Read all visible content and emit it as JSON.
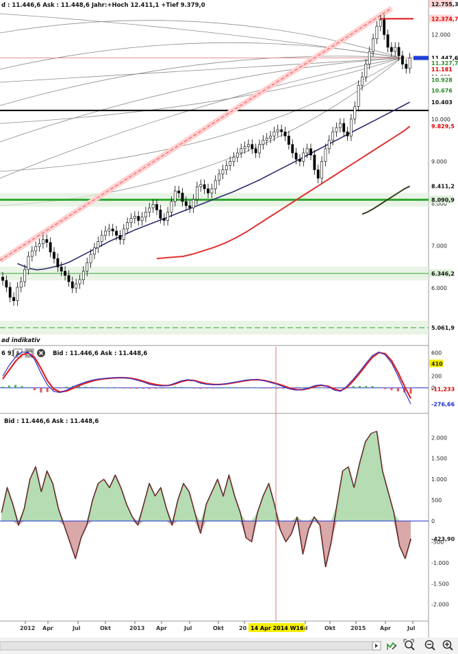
{
  "header": {
    "main_quote": "d : 11.446,6 Ask : 11.448,6 Jahr:+Hoch 12.411,1 +Tief 9.379,0",
    "indicator_label": "ad indikativ",
    "macd_settings": "6 9]",
    "macd_quote": "Bid : 11.446,6 Ask : 11.448,6",
    "osc_quote": "Bid : 11.446,6 Ask : 11.448,6"
  },
  "icons": {
    "wrench": "wrench-icon",
    "window": "window-icon",
    "close": "close-icon",
    "scroll_right": "scroll-right-arrow-icon",
    "edit": "edit-chart-icon",
    "zoom_fit": "zoom-fit-icon",
    "zoom_out": "zoom-out-icon",
    "zoom_in": "zoom-in-icon"
  },
  "colors": {
    "price_body_up": "#ffffff",
    "price_body_down": "#000000",
    "ma_short": "#2c2c6e",
    "ma_mid": "#e03030",
    "ma_long": "#3b3b1e",
    "support_green": "#2fa82f",
    "resistance_red": "#e01010",
    "macd_blue": "#3333cc",
    "macd_red": "#e02020",
    "hist_green": "#44bb44",
    "hist_red": "#dd5555",
    "osc_pos_fill": "#b5dcb2",
    "osc_neg_fill": "#d9a9a9",
    "tag_yellow": "#f6f000",
    "tag_blue": "#1f3fd6"
  },
  "crosshair_label": "14 Apr 2014 W16",
  "x_axis": {
    "ticks": [
      "2012",
      "Apr",
      "Jul",
      "Okt",
      "2013",
      "Apr",
      "Jul",
      "Okt",
      "20",
      "Jul",
      "Okt",
      "2015",
      "Apr",
      "Jul"
    ]
  },
  "chart_data": [
    {
      "type": "candlestick",
      "title": "",
      "ylim": [
        5061.9,
        12755.3
      ],
      "y_ticks": [
        "12.000",
        "11.000",
        "10.000",
        "9.000",
        "8.000",
        "7.000",
        "6.000"
      ],
      "right_labels": {
        "top": "12.755,3",
        "resistance": "12.374,7",
        "last_price": "11.447,6",
        "l1": "11.327,7",
        "l2": "11.181",
        "l3": "10.928",
        "l4": "10.676",
        "l5": "10.403",
        "l6": "9.829,5",
        "l7": "8.411,2",
        "l8": "8.090,9",
        "l9": "6.346,2",
        "l10": "5.061,9"
      },
      "horizontal_levels": {
        "black_level": 10205,
        "green_thick": 8091,
        "green_thin": 6346,
        "green_dashed": 5062,
        "red_top": 12375,
        "price_line": 11448
      },
      "weekly_close": [
        6180,
        6020,
        5780,
        5700,
        6020,
        6150,
        6440,
        6750,
        6880,
        6980,
        7050,
        7150,
        7080,
        6850,
        6700,
        6500,
        6400,
        6300,
        6150,
        6000,
        6100,
        6200,
        6400,
        6600,
        6800,
        6950,
        7100,
        7250,
        7350,
        7400,
        7350,
        7250,
        7150,
        7400,
        7550,
        7650,
        7700,
        7600,
        7680,
        7800,
        7900,
        7980,
        7850,
        7650,
        7600,
        7800,
        8050,
        8300,
        8250,
        8050,
        7950,
        7900,
        8100,
        8400,
        8450,
        8350,
        8250,
        8350,
        8550,
        8700,
        8800,
        8900,
        9000,
        9100,
        9200,
        9300,
        9350,
        9400,
        9300,
        9200,
        9400,
        9500,
        9550,
        9600,
        9700,
        9750,
        9700,
        9600,
        9400,
        9200,
        9050,
        9000,
        9200,
        9300,
        9150,
        8800,
        8600,
        9000,
        9300,
        9500,
        9700,
        9800,
        9900,
        9700,
        9600,
        10000,
        10300,
        10800,
        11000,
        11300,
        11600,
        11900,
        12200,
        12350,
        12000,
        11700,
        11600,
        11700,
        11500,
        11300,
        11200,
        11448
      ],
      "ma_short": [
        6580,
        6520,
        6460,
        6430,
        6450,
        6480,
        6520,
        6560,
        6620,
        6700,
        6780,
        6860,
        6940,
        7020,
        7100,
        7170,
        7240,
        7310,
        7380,
        7440,
        7500,
        7560,
        7620,
        7680,
        7740,
        7800,
        7860,
        7920,
        7980,
        8040,
        8100,
        8160,
        8220,
        8280,
        8350,
        8420,
        8490,
        8560,
        8640,
        8720,
        8800,
        8880,
        8960,
        9040,
        9120,
        9200,
        9280,
        9360,
        9440,
        9520,
        9600,
        9680,
        9760,
        9840,
        9920,
        10000,
        10080,
        10160,
        10240,
        10320,
        10403
      ],
      "ma_mid": [
        6700,
        6710,
        6720,
        6730,
        6740,
        6750,
        6780,
        6810,
        6850,
        6890,
        6930,
        6970,
        7020,
        7070,
        7130,
        7190,
        7260,
        7330,
        7410,
        7490,
        7570,
        7650,
        7730,
        7810,
        7890,
        7970,
        8050,
        8130,
        8210,
        8290,
        8370,
        8450,
        8530,
        8610,
        8690,
        8770,
        8850,
        8930,
        9010,
        9090,
        9170,
        9250,
        9330,
        9410,
        9490,
        9570,
        9650,
        9730,
        9830
      ],
      "ma_long": [
        7750,
        7800,
        7870,
        7950,
        8030,
        8110,
        8190,
        8270,
        8350,
        8411
      ]
    },
    {
      "type": "line",
      "title": "",
      "ylim": [
        -400,
        650
      ],
      "y_ticks": [
        "600",
        "400",
        "200",
        "0"
      ],
      "right_labels": {
        "signal": "410",
        "hist": "-11,233",
        "macd": "-276,66"
      },
      "macd": [
        200,
        380,
        520,
        610,
        600,
        480,
        250,
        50,
        -60,
        -80,
        -40,
        20,
        60,
        100,
        130,
        150,
        160,
        170,
        175,
        170,
        160,
        130,
        100,
        60,
        40,
        30,
        40,
        80,
        120,
        140,
        120,
        80,
        60,
        50,
        55,
        70,
        90,
        110,
        130,
        140,
        140,
        120,
        90,
        60,
        20,
        -20,
        -40,
        -30,
        0,
        40,
        50,
        20,
        -40,
        -60,
        30,
        150,
        280,
        420,
        550,
        610,
        560,
        420,
        200,
        -50,
        -276
      ],
      "signal": [
        150,
        300,
        450,
        560,
        590,
        520,
        330,
        120,
        -20,
        -70,
        -55,
        -10,
        40,
        80,
        115,
        140,
        155,
        165,
        172,
        172,
        165,
        145,
        115,
        80,
        55,
        40,
        40,
        65,
        105,
        130,
        125,
        95,
        70,
        58,
        56,
        65,
        82,
        100,
        120,
        135,
        138,
        125,
        100,
        70,
        35,
        -5,
        -30,
        -32,
        -10,
        25,
        42,
        28,
        -20,
        -50,
        10,
        120,
        250,
        390,
        520,
        600,
        580,
        460,
        260,
        30,
        -180
      ],
      "hist": [
        20,
        40,
        50,
        30,
        10,
        -40,
        -80,
        -70,
        -40,
        -10,
        20,
        30,
        25,
        20,
        15,
        10,
        5,
        5,
        3,
        -2,
        -5,
        -15,
        -15,
        -20,
        -15,
        -10,
        0,
        15,
        15,
        10,
        -5,
        -15,
        -10,
        -8,
        0,
        5,
        8,
        10,
        10,
        5,
        2,
        -5,
        -10,
        -10,
        -15,
        -15,
        -10,
        2,
        10,
        15,
        8,
        -8,
        -20,
        -10,
        20,
        30,
        30,
        30,
        30,
        10,
        -20,
        -40,
        -60,
        -80,
        -96
      ]
    },
    {
      "type": "area",
      "title": "",
      "ylim": [
        -2300,
        2300
      ],
      "y_ticks": [
        "2.000",
        "1.500",
        "1.000",
        "500",
        "0",
        "-500",
        "-1.000",
        "-1.500",
        "-2.000"
      ],
      "right_labels": {
        "last": "-423,90"
      },
      "values": [
        200,
        800,
        400,
        -100,
        300,
        1000,
        1300,
        700,
        1200,
        900,
        300,
        -100,
        -500,
        -900,
        -400,
        -100,
        500,
        900,
        1000,
        800,
        1100,
        800,
        400,
        100,
        -100,
        400,
        900,
        600,
        800,
        300,
        -100,
        500,
        900,
        700,
        200,
        -300,
        400,
        700,
        1000,
        600,
        1100,
        600,
        200,
        -400,
        -500,
        200,
        600,
        900,
        400,
        -200,
        -500,
        -300,
        100,
        -800,
        -200,
        100,
        -100,
        -1100,
        -500,
        400,
        1200,
        1300,
        800,
        1400,
        1900,
        2100,
        2150,
        1200,
        700,
        200,
        -600,
        -900,
        -424
      ]
    }
  ]
}
